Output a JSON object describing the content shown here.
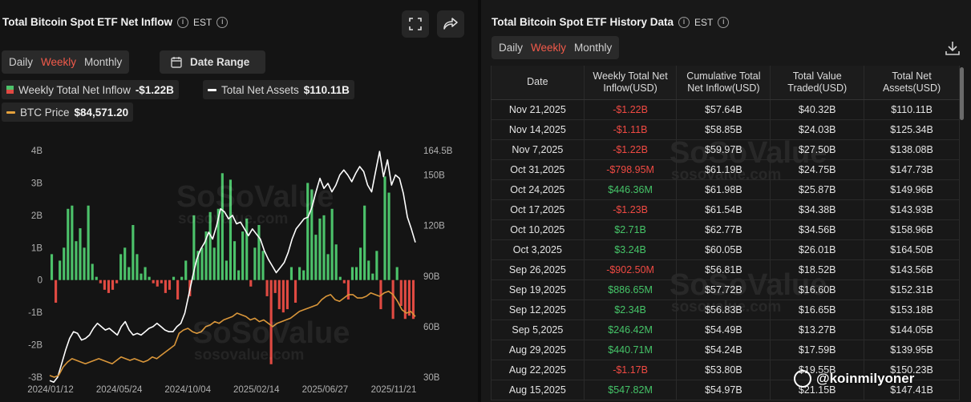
{
  "left_panel": {
    "title": "Total Bitcoin Spot ETF Net Inflow",
    "timezone": "EST",
    "tabs": [
      "Daily",
      "Weekly",
      "Monthly"
    ],
    "active_tab": "Weekly",
    "date_range_label": "Date Range",
    "legend": {
      "inflow_label": "Weekly Total Net Inflow",
      "inflow_value": "-$1.22B",
      "assets_label": "Total Net Assets",
      "assets_value": "$110.11B",
      "btc_label": "BTC Price",
      "btc_value": "$84,571.20"
    },
    "watermark": "SoSoValue",
    "watermark_sub": "sosovalue.com"
  },
  "right_panel": {
    "title": "Total Bitcoin Spot ETF History Data",
    "timezone": "EST",
    "tabs": [
      "Daily",
      "Weekly",
      "Monthly"
    ],
    "active_tab": "Weekly",
    "columns": [
      "Date",
      "Weekly Total Net Inflow(USD)",
      "Cumulative Total Net Inflow(USD)",
      "Total Value Traded(USD)",
      "Total Net Assets(USD)"
    ],
    "rows": [
      [
        "Nov 21,2025",
        "-$1.22B",
        "$57.64B",
        "$40.32B",
        "$110.11B"
      ],
      [
        "Nov 14,2025",
        "-$1.11B",
        "$58.85B",
        "$24.03B",
        "$125.34B"
      ],
      [
        "Nov 7,2025",
        "-$1.22B",
        "$59.97B",
        "$27.50B",
        "$138.08B"
      ],
      [
        "Oct 31,2025",
        "-$798.95M",
        "$61.19B",
        "$24.75B",
        "$147.73B"
      ],
      [
        "Oct 24,2025",
        "$446.36M",
        "$61.98B",
        "$25.87B",
        "$149.96B"
      ],
      [
        "Oct 17,2025",
        "-$1.23B",
        "$61.54B",
        "$34.38B",
        "$143.93B"
      ],
      [
        "Oct 10,2025",
        "$2.71B",
        "$62.77B",
        "$34.56B",
        "$158.96B"
      ],
      [
        "Oct 3,2025",
        "$3.24B",
        "$60.05B",
        "$26.01B",
        "$164.50B"
      ],
      [
        "Sep 26,2025",
        "-$902.50M",
        "$56.81B",
        "$18.52B",
        "$143.56B"
      ],
      [
        "Sep 19,2025",
        "$886.65M",
        "$57.72B",
        "$16.60B",
        "$152.31B"
      ],
      [
        "Sep 12,2025",
        "$2.34B",
        "$56.83B",
        "$16.65B",
        "$153.18B"
      ],
      [
        "Sep 5,2025",
        "$246.42M",
        "$54.49B",
        "$13.27B",
        "$144.05B"
      ],
      [
        "Aug 29,2025",
        "$440.71M",
        "$54.24B",
        "$17.59B",
        "$139.95B"
      ],
      [
        "Aug 22,2025",
        "-$1.17B",
        "$53.80B",
        "$19.55B",
        "$150.23B"
      ],
      [
        "Aug 15,2025",
        "$547.82M",
        "$54.97B",
        "$21.15B",
        "$147.41B"
      ]
    ]
  },
  "overlay": {
    "handle": "@koinmilyoner"
  },
  "colors": {
    "positive": "#4cc26a",
    "negative": "#e04a42",
    "assets_line": "#ffffff",
    "btc_line": "#d9963a",
    "active_tab": "#f25a4a"
  },
  "chart_data": {
    "type": "bar",
    "x_ticks": [
      "2024/01/12",
      "2024/05/24",
      "2024/10/04",
      "2025/02/14",
      "2025/06/27",
      "2025/11/21"
    ],
    "y_left_ticks": [
      "4B",
      "3B",
      "2B",
      "1B",
      "0",
      "-1B",
      "-2B",
      "-3B"
    ],
    "y_left_range": [
      -3,
      4
    ],
    "y_left_unit": "B USD",
    "y_right_ticks": [
      "164.5B",
      "150B",
      "120B",
      "90B",
      "60B",
      "30B"
    ],
    "y_right_range": [
      30,
      164.5
    ],
    "series": [
      {
        "name": "Weekly Total Net Inflow",
        "type": "bar",
        "axis": "left",
        "values": [
          0.8,
          -0.7,
          0.6,
          1.0,
          2.2,
          2.3,
          1.2,
          1.6,
          1.0,
          2.3,
          0.5,
          0.1,
          -0.1,
          -0.3,
          -0.4,
          -0.3,
          -0.1,
          0.8,
          1.0,
          0.4,
          1.7,
          0.8,
          0.2,
          0.4,
          0.1,
          -0.1,
          -0.2,
          -0.1,
          -0.4,
          -0.3,
          0.1,
          -0.6,
          0.1,
          0.6,
          -0.5,
          2.0,
          0.9,
          1.0,
          1.5,
          2.1,
          1.0,
          2.2,
          3.3,
          0.6,
          3.1,
          1.2,
          0.3,
          1.5,
          1.9,
          -0.2,
          1.0,
          1.7,
          0.9,
          -0.5,
          -2.6,
          -0.4,
          -0.9,
          -1.0,
          -0.9,
          0.4,
          -0.7,
          0.4,
          0.3,
          3.0,
          2.8,
          1.4,
          1.9,
          2.0,
          0.8,
          2.2,
          1.1,
          0.1,
          -0.1,
          -0.6,
          0.4,
          0.4,
          1.0,
          2.3,
          0.6,
          0.2,
          0.9,
          -0.9,
          3.2,
          2.7,
          -1.2,
          0.4,
          -0.8,
          -1.2,
          -1.1,
          -1.2
        ]
      },
      {
        "name": "Total Net Assets",
        "type": "line",
        "axis": "right",
        "values": [
          28,
          27,
          30,
          38,
          46,
          53,
          57,
          56,
          52,
          53,
          55,
          59,
          62,
          60,
          58,
          59,
          57,
          55,
          60,
          63,
          58,
          55,
          56,
          55,
          57,
          59,
          60,
          62,
          60,
          58,
          57,
          57,
          60,
          62,
          68,
          79,
          90,
          100,
          106,
          110,
          116,
          112,
          120,
          130,
          128,
          124,
          126,
          121,
          122,
          118,
          114,
          118,
          115,
          112,
          105,
          100,
          96,
          92,
          95,
          98,
          104,
          112,
          118,
          121,
          124,
          125,
          131,
          140,
          148,
          142,
          145,
          140,
          144,
          150,
          153,
          150,
          146,
          151,
          155,
          152,
          144,
          140,
          152,
          164,
          149,
          159,
          144,
          150,
          148,
          139,
          125,
          118,
          110
        ]
      },
      {
        "name": "BTC Price",
        "type": "line",
        "axis": "right",
        "values": [
          31,
          30,
          31,
          36,
          39,
          41,
          40,
          39,
          38,
          39,
          40,
          41,
          40,
          39,
          38,
          40,
          42,
          41,
          40,
          41,
          40,
          39,
          40,
          42,
          41,
          43,
          45,
          47,
          49,
          56,
          58,
          59,
          57,
          56,
          57,
          60,
          61,
          63,
          62,
          64,
          65,
          66,
          68,
          67,
          66,
          64,
          65,
          63,
          64,
          62,
          60,
          62,
          63,
          64,
          65,
          67,
          69,
          70,
          71,
          72,
          73,
          76,
          78,
          79,
          76,
          75,
          77,
          79,
          79,
          77,
          77,
          78,
          80,
          79,
          78,
          80,
          81,
          79,
          75,
          70,
          68,
          69,
          66
        ]
      }
    ]
  }
}
